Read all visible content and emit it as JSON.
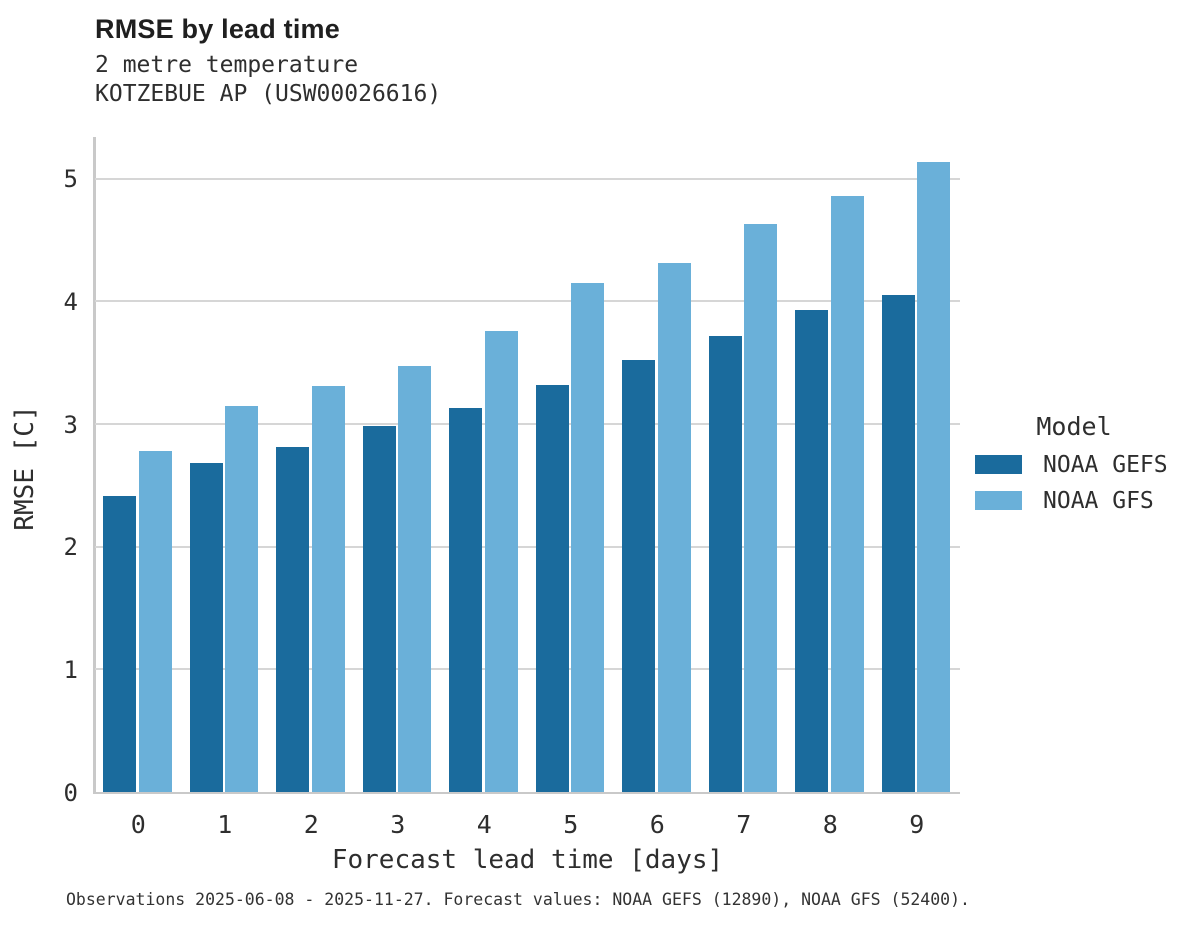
{
  "title": "RMSE by lead time",
  "subtitle_line1": "2 metre temperature",
  "subtitle_line2": "KOTZEBUE AP (USW00026616)",
  "footer": "Observations 2025-06-08 - 2025-11-27. Forecast values: NOAA GEFS (12890), NOAA GFS (52400).",
  "legend": {
    "title": "Model",
    "entries": [
      {
        "label": "NOAA GEFS",
        "color": "#1a6b9d"
      },
      {
        "label": "NOAA GFS",
        "color": "#6ab0d9"
      }
    ]
  },
  "chart_data": {
    "type": "bar",
    "title": "RMSE by lead time",
    "subtitle": [
      "2 metre temperature",
      "KOTZEBUE AP (USW00026616)"
    ],
    "categories": [
      "0",
      "1",
      "2",
      "3",
      "4",
      "5",
      "6",
      "7",
      "8",
      "9"
    ],
    "series": [
      {
        "name": "NOAA GEFS",
        "color": "#1a6b9d",
        "values": [
          2.41,
          2.68,
          2.81,
          2.98,
          3.13,
          3.32,
          3.52,
          3.72,
          3.93,
          4.05
        ]
      },
      {
        "name": "NOAA GFS",
        "color": "#6ab0d9",
        "values": [
          2.78,
          3.15,
          3.31,
          3.47,
          3.76,
          4.15,
          4.31,
          4.63,
          4.86,
          5.14
        ]
      }
    ],
    "xlabel": "Forecast lead time [days]",
    "ylabel": "RMSE [C]",
    "ylim": [
      0,
      5.34
    ],
    "yticks": [
      0,
      1,
      2,
      3,
      4,
      5
    ],
    "grid": true,
    "legend_position": "right",
    "legend_title": "Model"
  }
}
